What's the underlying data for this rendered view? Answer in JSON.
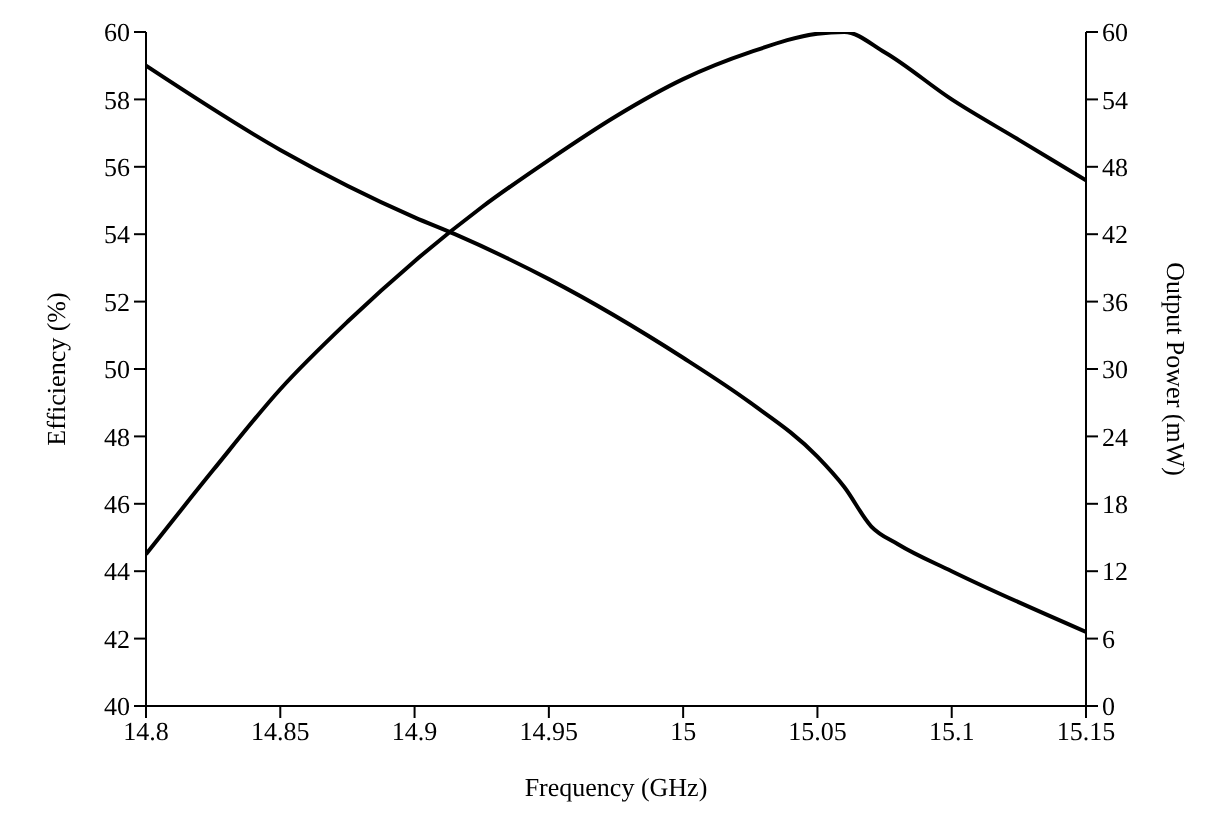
{
  "chart_data": {
    "type": "line",
    "xlabel": "Frequency (GHz)",
    "ylabel": "Efficiency (%)",
    "y2label": "Output Power (mW)",
    "xlim": [
      14.8,
      15.15
    ],
    "xticks": [
      14.8,
      14.85,
      14.9,
      14.95,
      15,
      15.05,
      15.1,
      15.15
    ],
    "ylim": [
      40,
      60
    ],
    "yticks": [
      40,
      42,
      44,
      46,
      48,
      50,
      52,
      54,
      56,
      58,
      60
    ],
    "y2lim": [
      0,
      60
    ],
    "y2ticks": [
      0,
      6,
      12,
      18,
      24,
      30,
      36,
      42,
      48,
      54,
      60
    ],
    "marker": "none",
    "line_style": "solid",
    "series": [
      {
        "color": "#000000",
        "x": [
          14.8,
          14.825,
          14.85,
          14.875,
          14.9,
          14.925,
          14.95,
          14.975,
          15,
          15.025,
          15.05,
          15.06,
          15.075,
          15.1,
          15.125,
          15.15
        ],
        "values": [
          44.5,
          47,
          49.4,
          51.4,
          53.2,
          54.8,
          56.2,
          57.5,
          58.6,
          59.4,
          59.95,
          60,
          59.4,
          58,
          56.8,
          55.6
        ]
      },
      {
        "color": "#000000",
        "axis": "y2",
        "x": [
          14.8,
          14.85,
          14.9,
          14.915,
          14.95,
          15,
          15.025,
          15.05,
          15.06,
          15.07,
          15.08,
          15.1,
          15.15
        ],
        "values": [
          57,
          49.5,
          43.5,
          42,
          38,
          31,
          27,
          22.2,
          19.5,
          16,
          14.4,
          12,
          6.6
        ]
      }
    ]
  }
}
